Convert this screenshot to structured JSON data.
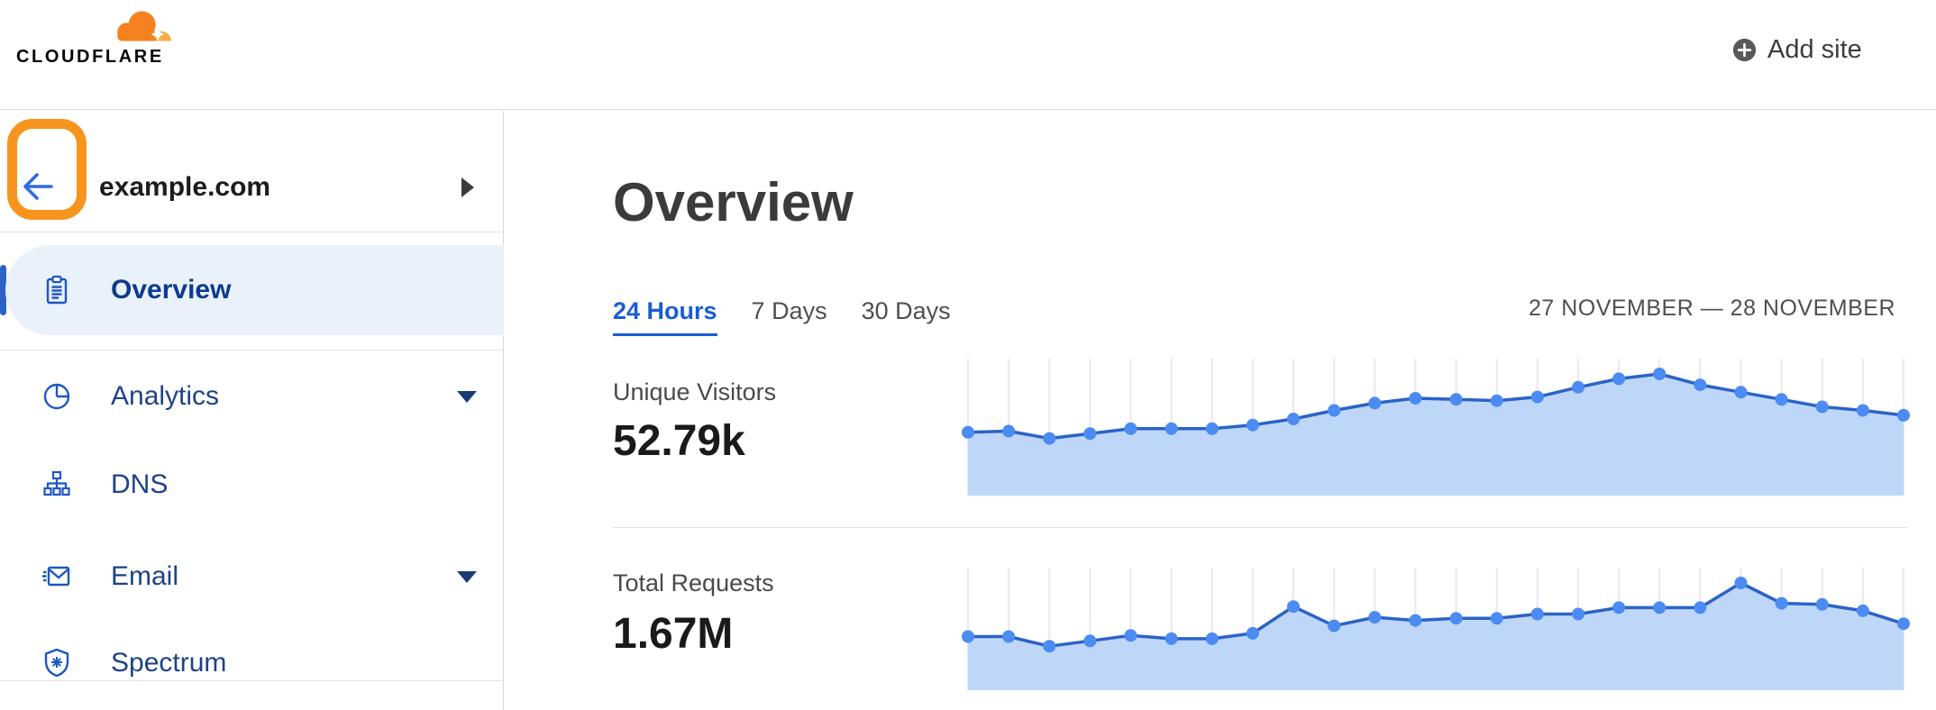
{
  "header": {
    "logo_text": "CLOUDFLARE",
    "add_site_label": "Add site"
  },
  "sidebar": {
    "site_name": "example.com",
    "items": [
      {
        "label": "Overview",
        "icon": "clipboard-icon",
        "selected": true,
        "has_submenu": false
      },
      {
        "label": "Analytics",
        "icon": "pie-chart-icon",
        "selected": false,
        "has_submenu": true
      },
      {
        "label": "DNS",
        "icon": "dns-tree-icon",
        "selected": false,
        "has_submenu": false
      },
      {
        "label": "Email",
        "icon": "email-envelope-icon",
        "selected": false,
        "has_submenu": true
      },
      {
        "label": "Spectrum",
        "icon": "shield-spectrum-icon",
        "selected": false,
        "has_submenu": false
      }
    ]
  },
  "main": {
    "title": "Overview",
    "tabs": [
      {
        "label": "24 Hours",
        "active": true
      },
      {
        "label": "7 Days",
        "active": false
      },
      {
        "label": "30 Days",
        "active": false
      }
    ],
    "date_range": "27 NOVEMBER — 28 NOVEMBER"
  },
  "chart_data": [
    {
      "type": "area",
      "title": "Unique Visitors",
      "total": "52.79k",
      "x": "24 hourly points spanning 27 November – 28 November",
      "ylabel": "relative value (100 = series peak; y-axis unlabeled in UI)",
      "values": [
        52,
        53,
        47,
        51,
        55,
        55,
        55,
        58,
        63,
        70,
        76,
        80,
        79,
        78,
        81,
        89,
        96,
        100,
        91,
        85,
        79,
        73,
        70,
        66
      ],
      "grid": "vertical gridline at each point",
      "legend": "none"
    },
    {
      "type": "area",
      "title": "Total Requests",
      "total": "1.67M",
      "x": "24 hourly points spanning 27 November – 28 November",
      "ylabel": "relative value (100 = series peak; y-axis unlabeled in UI)",
      "values": [
        50,
        50,
        41,
        46,
        51,
        48,
        48,
        53,
        78,
        60,
        68,
        65,
        67,
        67,
        71,
        71,
        77,
        77,
        77,
        100,
        81,
        80,
        74,
        62
      ],
      "grid": "vertical gridline at each point",
      "legend": "none"
    }
  ],
  "colors": {
    "brand-orange": "#F6821F",
    "brand-orange-light": "#FBAD41",
    "annotation-orange": "#F7941E",
    "accent-blue": "#1A5CD6",
    "nav-text": "#1E4287",
    "nav-selected-text": "#0D3A8E",
    "nav-selected-bg": "#E9F1FB",
    "nav-icon": "#1D57C2",
    "chart-line": "#2B63C7",
    "chart-dot": "#4C8BF2",
    "chart-fill": "#BED7F8",
    "chart-grid": "#E9E9EE",
    "divider": "#DEDEE2",
    "text-dark": "#1D1D1D",
    "text-gray": "#4A4A4A"
  }
}
